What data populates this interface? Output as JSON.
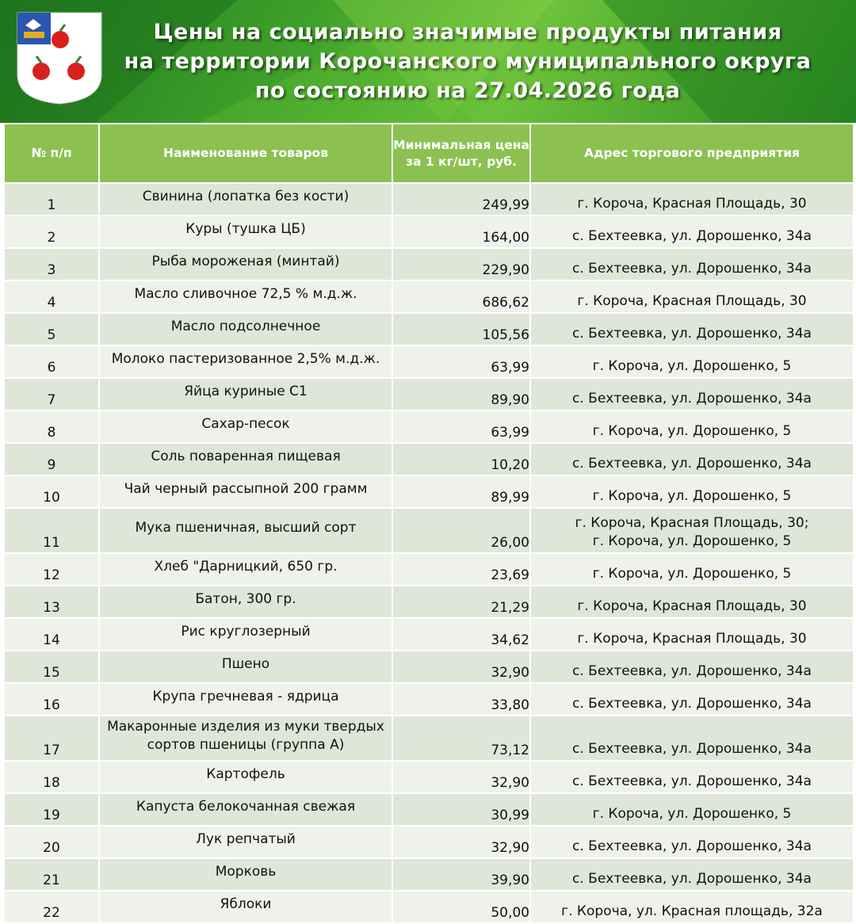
{
  "header": {
    "title": [
      "Цены на социально значимые продукты питания",
      "на территории Корочанского муниципального округа",
      "по состоянию на 27.04.2026 года"
    ]
  },
  "table": {
    "columns": [
      "№ п/п",
      "Наименование товаров",
      "Минимальная цена за 1 кг/шт, руб.",
      "Адрес торгового предприятия"
    ],
    "rows": [
      [
        "1",
        [
          "Свинина (лопатка без кости)"
        ],
        "249,99",
        [
          "г. Короча, Красная Площадь, 30"
        ]
      ],
      [
        "2",
        [
          "Куры (тушка ЦБ)"
        ],
        "164,00",
        [
          "с. Бехтеевка, ул. Дорошенко, 34а"
        ]
      ],
      [
        "3",
        [
          "Рыба мороженая (минтай)"
        ],
        "229,90",
        [
          "с. Бехтеевка, ул. Дорошенко, 34а"
        ]
      ],
      [
        "4",
        [
          "Масло сливочное 72,5 % м.д.ж."
        ],
        "686,62",
        [
          "г. Короча, Красная Площадь, 30"
        ]
      ],
      [
        "5",
        [
          "Масло подсолнечное"
        ],
        "105,56",
        [
          "с. Бехтеевка, ул. Дорошенко, 34а"
        ]
      ],
      [
        "6",
        [
          "Молоко пастеризованное 2,5% м.д.ж."
        ],
        "63,99",
        [
          "г. Короча, ул. Дорошенко, 5"
        ]
      ],
      [
        "7",
        [
          "Яйца куриные С1"
        ],
        "89,90",
        [
          "с. Бехтеевка, ул. Дорошенко, 34а"
        ]
      ],
      [
        "8",
        [
          "Сахар-песок"
        ],
        "63,99",
        [
          "г. Короча, ул. Дорошенко, 5"
        ]
      ],
      [
        "9",
        [
          "Соль поваренная пищевая"
        ],
        "10,20",
        [
          "с. Бехтеевка, ул. Дорошенко, 34а"
        ]
      ],
      [
        "10",
        [
          "Чай черный рассыпной 200 грамм"
        ],
        "89,99",
        [
          "г. Короча, ул. Дорошенко, 5"
        ]
      ],
      [
        "11",
        [
          "Мука пшеничная, высший сорт"
        ],
        "26,00",
        [
          "г. Короча, Красная Площадь, 30;",
          "г. Короча, ул. Дорошенко, 5"
        ]
      ],
      [
        "12",
        [
          "Хлеб \"Дарницкий, 650 гр."
        ],
        "23,69",
        [
          "г. Короча, ул. Дорошенко, 5"
        ]
      ],
      [
        "13",
        [
          "Батон, 300 гр."
        ],
        "21,29",
        [
          "г. Короча, Красная Площадь, 30"
        ]
      ],
      [
        "14",
        [
          "Рис круглозерный"
        ],
        "34,62",
        [
          "г. Короча, Красная Площадь, 30"
        ]
      ],
      [
        "15",
        [
          "Пшено"
        ],
        "32,90",
        [
          "с. Бехтеевка, ул. Дорошенко, 34а"
        ]
      ],
      [
        "16",
        [
          "Крупа гречневая - ядрица"
        ],
        "33,80",
        [
          "с. Бехтеевка, ул. Дорошенко, 34а"
        ]
      ],
      [
        "17",
        [
          "Макаронные изделия из муки твердых",
          "сортов пшеницы (группа А)"
        ],
        "73,12",
        [
          "с. Бехтеевка, ул. Дорошенко, 34а"
        ]
      ],
      [
        "18",
        [
          "Картофель"
        ],
        "32,90",
        [
          "с. Бехтеевка, ул. Дорошенко, 34а"
        ]
      ],
      [
        "19",
        [
          "Капуста белокочанная свежая"
        ],
        "30,99",
        [
          "г. Короча, ул. Дорошенко, 5"
        ]
      ],
      [
        "20",
        [
          "Лук репчатый"
        ],
        "32,90",
        [
          "с. Бехтеевка, ул. Дорошенко, 34а"
        ]
      ],
      [
        "21",
        [
          "Морковь"
        ],
        "39,90",
        [
          "с. Бехтеевка, ул. Дорошенко, 34а"
        ]
      ],
      [
        "22",
        [
          "Яблоки"
        ],
        "50,00",
        [
          "г. Короча, ул. Красная площадь, 32а"
        ]
      ]
    ]
  }
}
